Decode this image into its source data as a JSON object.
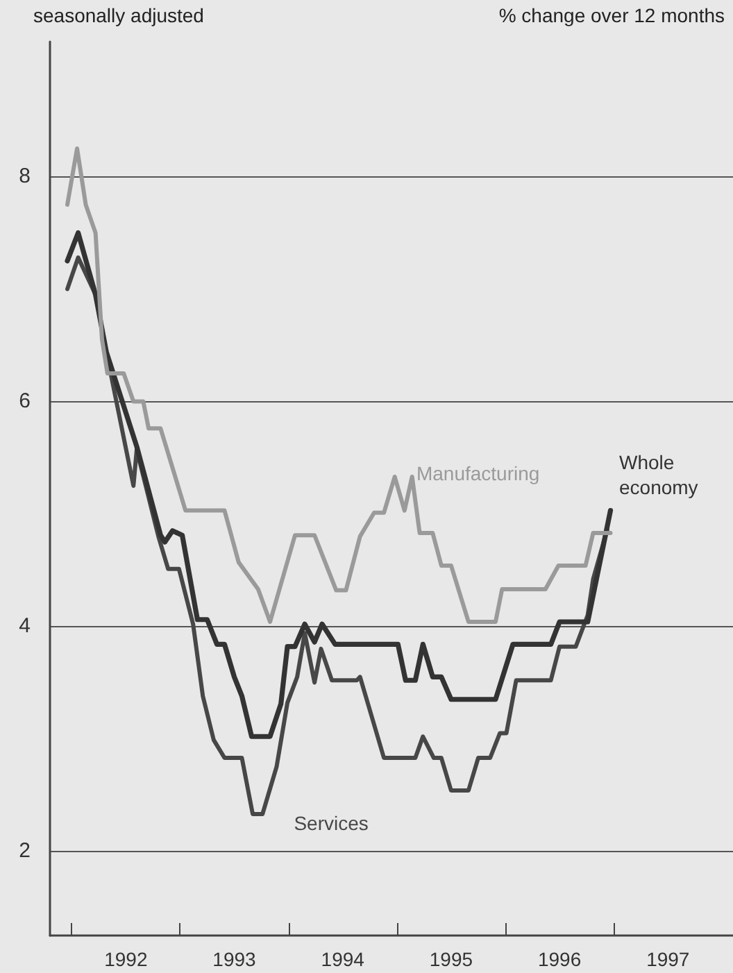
{
  "chart_data": {
    "type": "line",
    "subtitle": "seasonally adjusted",
    "ylabel": "% change over 12 months",
    "xlim": [
      1991.8,
      1998.1
    ],
    "ylim": [
      1.25,
      9.2
    ],
    "xticks": [
      {
        "value": 1992,
        "label": null
      },
      {
        "value": 1993,
        "label": null
      },
      {
        "value": 1994,
        "label": null
      },
      {
        "value": 1995,
        "label": null
      },
      {
        "value": 1996,
        "label": null
      },
      {
        "value": 1997,
        "label": null
      },
      {
        "value": 1992.5,
        "label": "1992"
      },
      {
        "value": 1993.5,
        "label": "1993"
      },
      {
        "value": 1994.5,
        "label": "1994"
      },
      {
        "value": 1995.5,
        "label": "1995"
      },
      {
        "value": 1996.5,
        "label": "1996"
      },
      {
        "value": 1997.5,
        "label": "1997"
      }
    ],
    "yticks": [
      2,
      4,
      6,
      8
    ],
    "grid": "y",
    "legend": false,
    "marker": "none",
    "line_style": "solid",
    "series": [
      {
        "name": "Manufacturing",
        "color": "#9a9a9a",
        "x": [
          1991.96,
          1992.05,
          1992.13,
          1992.22,
          1992.28,
          1992.33,
          1992.48,
          1992.57,
          1992.66,
          1992.71,
          1992.82,
          1993.05,
          1993.41,
          1993.54,
          1993.72,
          1993.83,
          1994.06,
          1994.24,
          1994.44,
          1994.53,
          1994.66,
          1994.79,
          1994.88,
          1994.98,
          1995.07,
          1995.14,
          1995.21,
          1995.33,
          1995.41,
          1995.5,
          1995.66,
          1995.91,
          1995.97,
          1996.37,
          1996.49,
          1996.74,
          1996.81,
          1996.97
        ],
        "values": [
          7.75,
          8.25,
          7.75,
          7.5,
          6.55,
          6.25,
          6.25,
          6.0,
          6.0,
          5.76,
          5.76,
          5.03,
          5.03,
          4.57,
          4.33,
          4.04,
          4.81,
          4.81,
          4.32,
          4.32,
          4.8,
          5.01,
          5.01,
          5.33,
          5.03,
          5.33,
          4.83,
          4.83,
          4.54,
          4.54,
          4.04,
          4.04,
          4.33,
          4.33,
          4.54,
          4.54,
          4.83,
          4.83
        ]
      },
      {
        "name": "Whole economy",
        "color": "#333333",
        "x": [
          1991.96,
          1992.06,
          1992.22,
          1992.32,
          1992.6,
          1992.82,
          1992.86,
          1992.93,
          1993.02,
          1993.16,
          1993.25,
          1993.34,
          1993.41,
          1993.5,
          1993.57,
          1993.66,
          1993.83,
          1993.93,
          1993.99,
          1994.06,
          1994.15,
          1994.24,
          1994.31,
          1994.43,
          1995.01,
          1995.08,
          1995.17,
          1995.24,
          1995.33,
          1995.41,
          1995.5,
          1995.91,
          1996.07,
          1996.42,
          1996.5,
          1996.76,
          1996.97
        ],
        "values": [
          7.25,
          7.5,
          6.95,
          6.44,
          5.6,
          4.81,
          4.75,
          4.85,
          4.81,
          4.06,
          4.06,
          3.84,
          3.84,
          3.55,
          3.38,
          3.02,
          3.02,
          3.31,
          3.82,
          3.82,
          4.02,
          3.86,
          4.02,
          3.84,
          3.84,
          3.52,
          3.52,
          3.84,
          3.55,
          3.55,
          3.35,
          3.35,
          3.84,
          3.84,
          4.04,
          4.04,
          5.03
        ]
      },
      {
        "name": "Services",
        "color": "#474747",
        "x": [
          1991.96,
          1992.06,
          1992.22,
          1992.32,
          1992.57,
          1992.6,
          1992.8,
          1992.89,
          1992.99,
          1993.12,
          1993.21,
          1993.31,
          1993.41,
          1993.57,
          1993.67,
          1993.76,
          1993.89,
          1993.99,
          1994.08,
          1994.15,
          1994.24,
          1994.3,
          1994.4,
          1994.63,
          1994.66,
          1994.88,
          1995.17,
          1995.24,
          1995.34,
          1995.41,
          1995.5,
          1995.66,
          1995.75,
          1995.86,
          1995.95,
          1996.01,
          1996.1,
          1996.42,
          1996.5,
          1996.65,
          1996.76,
          1996.81,
          1996.94
        ],
        "values": [
          7.0,
          7.28,
          6.95,
          6.44,
          5.25,
          5.57,
          4.8,
          4.51,
          4.51,
          4.02,
          3.38,
          2.99,
          2.83,
          2.83,
          2.33,
          2.33,
          2.75,
          3.32,
          3.55,
          3.94,
          3.5,
          3.8,
          3.52,
          3.52,
          3.55,
          2.83,
          2.83,
          3.02,
          2.83,
          2.83,
          2.54,
          2.54,
          2.83,
          2.83,
          3.05,
          3.05,
          3.52,
          3.52,
          3.82,
          3.82,
          4.1,
          4.42,
          4.86
        ]
      }
    ]
  }
}
